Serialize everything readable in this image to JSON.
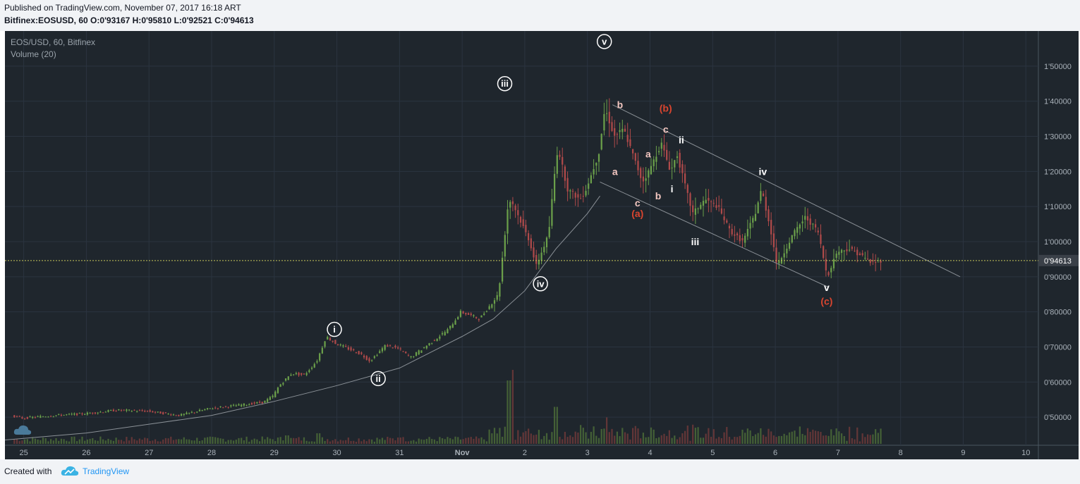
{
  "header": {
    "published": "Published on TradingView.com, November 07, 2017 16:18 ART",
    "symbol": "Bitfinex:EOSUSD, 60",
    "o_label": "O:",
    "o_value": "0'93167",
    "h_label": "H:",
    "h_value": "0'95810",
    "l_label": "L:",
    "l_value": "0'92521",
    "c_label": "C:",
    "c_value": "0'94613"
  },
  "legend": {
    "title": "EOS/USD, 60, Bitfinex",
    "volume": "Volume (20)"
  },
  "footer": {
    "created_with": "Created with",
    "brand": "TradingView"
  },
  "colors": {
    "background": "#1f262d",
    "grid": "#2b3440",
    "up": "#6ba04a",
    "down": "#b04a4a",
    "volume_up": "#4b6b38",
    "volume_down": "#6e3a3a",
    "price_line": "#c8c85a",
    "wave_white": "#ffffff",
    "wave_pink": "#f2c6c0",
    "wave_red": "#d9452f"
  },
  "chart_data": {
    "type": "candlestick",
    "y_axis": {
      "ticks": [
        "1'50000",
        "1'40000",
        "1'30000",
        "1'20000",
        "1'10000",
        "1'00000",
        "0'90000",
        "0'80000",
        "0'70000",
        "0'60000",
        "0'50000"
      ],
      "tick_values": [
        1.5,
        1.4,
        1.3,
        1.2,
        1.1,
        1.0,
        0.9,
        0.8,
        0.7,
        0.6,
        0.5
      ],
      "range": [
        0.42,
        1.6
      ]
    },
    "x_axis": {
      "ticks": [
        "25",
        "26",
        "27",
        "28",
        "29",
        "30",
        "31",
        "Nov",
        "2",
        "3",
        "4",
        "5",
        "6",
        "7",
        "8",
        "9",
        "10"
      ],
      "tick_days": [
        0,
        1,
        2,
        3,
        4,
        5,
        6,
        7,
        8,
        9,
        10,
        11,
        12,
        13,
        14,
        15,
        16
      ],
      "range_days": [
        -0.3,
        16.2
      ]
    },
    "last_price": {
      "label": "0'94613",
      "value": 0.94613
    },
    "price_path": [
      [
        -0.3,
        0.51
      ],
      [
        0.0,
        0.497
      ],
      [
        0.5,
        0.505
      ],
      [
        1.0,
        0.51
      ],
      [
        1.5,
        0.52
      ],
      [
        2.0,
        0.517
      ],
      [
        2.5,
        0.505
      ],
      [
        3.0,
        0.525
      ],
      [
        3.5,
        0.535
      ],
      [
        3.85,
        0.543
      ],
      [
        4.0,
        0.56
      ],
      [
        4.1,
        0.59
      ],
      [
        4.3,
        0.625
      ],
      [
        4.5,
        0.62
      ],
      [
        4.7,
        0.66
      ],
      [
        4.85,
        0.73
      ],
      [
        5.0,
        0.71
      ],
      [
        5.2,
        0.695
      ],
      [
        5.4,
        0.68
      ],
      [
        5.55,
        0.66
      ],
      [
        5.8,
        0.705
      ],
      [
        6.0,
        0.695
      ],
      [
        6.2,
        0.67
      ],
      [
        6.5,
        0.71
      ],
      [
        6.8,
        0.75
      ],
      [
        7.0,
        0.8
      ],
      [
        7.3,
        0.78
      ],
      [
        7.6,
        0.85
      ],
      [
        7.75,
        1.1
      ],
      [
        7.8,
        1.12
      ],
      [
        7.9,
        1.08
      ],
      [
        8.1,
        1.0
      ],
      [
        8.2,
        0.93
      ],
      [
        8.4,
        1.02
      ],
      [
        8.5,
        1.2
      ],
      [
        8.55,
        1.27
      ],
      [
        8.7,
        1.15
      ],
      [
        8.9,
        1.12
      ],
      [
        9.0,
        1.15
      ],
      [
        9.2,
        1.25
      ],
      [
        9.3,
        1.38
      ],
      [
        9.45,
        1.3
      ],
      [
        9.6,
        1.32
      ],
      [
        9.8,
        1.22
      ],
      [
        9.9,
        1.17
      ],
      [
        10.0,
        1.2
      ],
      [
        10.2,
        1.28
      ],
      [
        10.35,
        1.2
      ],
      [
        10.45,
        1.25
      ],
      [
        10.55,
        1.18
      ],
      [
        10.7,
        1.08
      ],
      [
        10.9,
        1.12
      ],
      [
        11.1,
        1.1
      ],
      [
        11.3,
        1.03
      ],
      [
        11.5,
        1.0
      ],
      [
        11.7,
        1.08
      ],
      [
        11.8,
        1.15
      ],
      [
        11.95,
        1.03
      ],
      [
        12.05,
        0.93
      ],
      [
        12.3,
        1.02
      ],
      [
        12.5,
        1.07
      ],
      [
        12.7,
        1.03
      ],
      [
        12.85,
        0.9
      ],
      [
        13.0,
        0.97
      ],
      [
        13.2,
        0.98
      ],
      [
        13.4,
        0.96
      ],
      [
        13.55,
        0.94
      ],
      [
        13.7,
        0.946
      ]
    ],
    "volume_spikes": [
      [
        7.75,
        0.6
      ],
      [
        7.8,
        0.7
      ],
      [
        8.5,
        0.35
      ],
      [
        9.3,
        0.25
      ],
      [
        4.2,
        0.08
      ],
      [
        4.7,
        0.1
      ],
      [
        6.0,
        0.06
      ],
      [
        10.5,
        0.1
      ],
      [
        11.7,
        0.06
      ],
      [
        12.8,
        0.08
      ]
    ],
    "wave_labels": [
      {
        "text": "i",
        "d": 4.96,
        "p": 0.75,
        "style": "circled"
      },
      {
        "text": "ii",
        "d": 5.66,
        "p": 0.61,
        "style": "circled"
      },
      {
        "text": "iii",
        "d": 7.68,
        "p": 1.45,
        "style": "circled"
      },
      {
        "text": "iv",
        "d": 8.25,
        "p": 0.88,
        "style": "circled"
      },
      {
        "text": "v",
        "d": 9.27,
        "p": 1.57,
        "style": "circled"
      },
      {
        "text": "a",
        "d": 9.44,
        "p": 1.2,
        "style": "pink"
      },
      {
        "text": "b",
        "d": 9.52,
        "p": 1.39,
        "style": "pink"
      },
      {
        "text": "c",
        "d": 9.8,
        "p": 1.11,
        "style": "pink"
      },
      {
        "text": "(a)",
        "d": 9.8,
        "p": 1.08,
        "style": "red"
      },
      {
        "text": "a",
        "d": 9.97,
        "p": 1.25,
        "style": "pink"
      },
      {
        "text": "b",
        "d": 10.13,
        "p": 1.13,
        "style": "pink"
      },
      {
        "text": "(b)",
        "d": 10.25,
        "p": 1.38,
        "style": "red"
      },
      {
        "text": "c",
        "d": 10.25,
        "p": 1.32,
        "style": "pink"
      },
      {
        "text": "i",
        "d": 10.35,
        "p": 1.15,
        "style": "white"
      },
      {
        "text": "ii",
        "d": 10.5,
        "p": 1.29,
        "style": "white"
      },
      {
        "text": "iii",
        "d": 10.72,
        "p": 1.0,
        "style": "white"
      },
      {
        "text": "iv",
        "d": 11.8,
        "p": 1.2,
        "style": "white"
      },
      {
        "text": "v",
        "d": 12.82,
        "p": 0.87,
        "style": "white"
      },
      {
        "text": "(c)",
        "d": 12.82,
        "p": 0.83,
        "style": "red"
      }
    ],
    "trendlines": [
      {
        "from": [
          9.4,
          1.39
        ],
        "to": [
          14.95,
          0.9
        ]
      },
      {
        "from": [
          9.2,
          1.17
        ],
        "to": [
          12.85,
          0.87
        ]
      }
    ],
    "moving_average": [
      [
        -0.3,
        0.435
      ],
      [
        1.0,
        0.455
      ],
      [
        2.0,
        0.48
      ],
      [
        3.0,
        0.505
      ],
      [
        4.0,
        0.545
      ],
      [
        5.0,
        0.59
      ],
      [
        6.0,
        0.64
      ],
      [
        7.0,
        0.73
      ],
      [
        7.5,
        0.78
      ],
      [
        8.0,
        0.86
      ],
      [
        8.5,
        0.98
      ],
      [
        9.0,
        1.08
      ],
      [
        9.2,
        1.13
      ]
    ],
    "grid": true,
    "legend_position": "top-left"
  }
}
